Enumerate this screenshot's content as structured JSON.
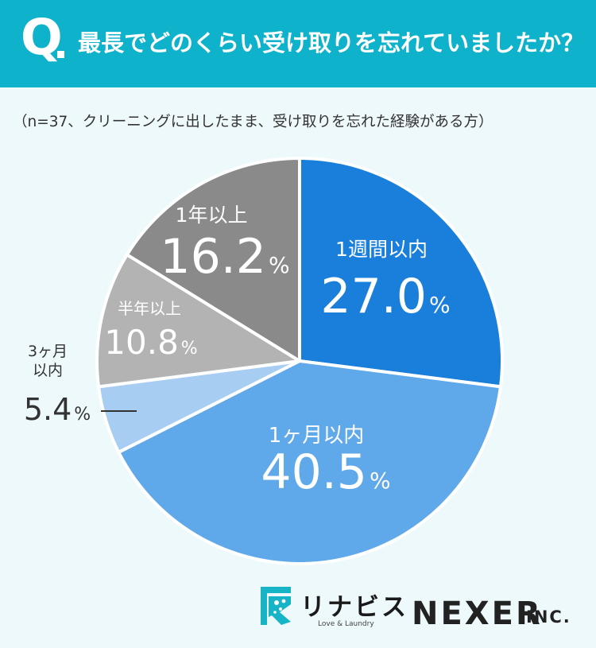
{
  "header": {
    "q_mark": "Q",
    "question": "最長でどのくらい受け取りを忘れていましたか？"
  },
  "note": "（n=37、クリーニングに出したまま、受け取りを忘れた経験がある方）",
  "chart_data": {
    "type": "pie",
    "unit": "%",
    "slices": [
      {
        "label": "1週間以内",
        "value": 27.0,
        "value_text": "27.0",
        "color": "#1a7fdb"
      },
      {
        "label": "1ヶ月以内",
        "value": 40.5,
        "value_text": "40.5",
        "color": "#5fa8ea"
      },
      {
        "label": "3ヶ月以内",
        "label_lines": [
          "3ヶ月",
          "以内"
        ],
        "value": 5.4,
        "value_text": "5.4",
        "color": "#a8cdf3"
      },
      {
        "label": "半年以上",
        "value": 10.8,
        "value_text": "10.8",
        "color": "#b3b3b3"
      },
      {
        "label": "1年以上",
        "value": 16.2,
        "value_text": "16.2",
        "color": "#8a8a8a"
      }
    ]
  },
  "logos": {
    "linaviss": "リナビス",
    "tagline": "Love & Laundry",
    "nexer": "NEXER",
    "inc": "INC."
  }
}
